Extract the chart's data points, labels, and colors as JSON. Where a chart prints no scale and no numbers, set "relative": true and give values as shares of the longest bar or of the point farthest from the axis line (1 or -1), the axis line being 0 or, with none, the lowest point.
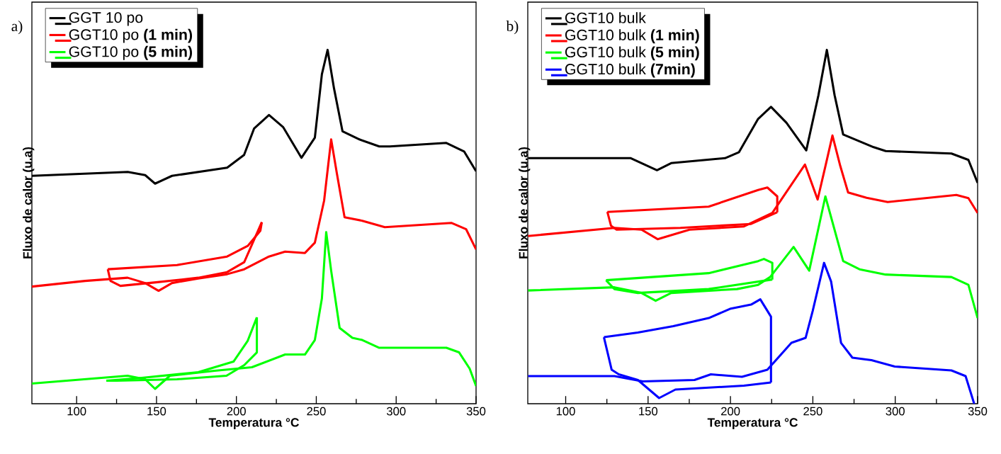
{
  "chart_data": [
    {
      "type": "line",
      "title": "a)",
      "xlabel": "Temperatura °C",
      "ylabel": "Fluxo de calor (u.a)",
      "relative": true,
      "xlim": [
        72,
        350
      ],
      "xticks": [
        100,
        150,
        200,
        250,
        300,
        350
      ],
      "tick_labels": "x",
      "legend": "top left",
      "line_style": "solid",
      "series": [
        {
          "name": "GGT 10 po",
          "color": "#000000",
          "x": [
            72,
            132,
            142.9,
            149.1,
            159.7,
            194.2,
            204.8,
            211.1,
            220.4,
            229.2,
            240.7,
            249.1,
            253.5,
            257.1,
            261.1,
            266.4,
            277,
            289.4,
            296,
            331.4,
            342.5,
            350
          ],
          "values": [
            0.644,
            0.655,
            0.646,
            0.622,
            0.644,
            0.667,
            0.703,
            0.778,
            0.816,
            0.782,
            0.695,
            0.752,
            0.931,
            1,
            0.891,
            0.77,
            0.747,
            0.727,
            0.727,
            0.737,
            0.713,
            0.657
          ]
        },
        {
          "name": "GGT10 po **(1 min)**",
          "color": "#ff0000",
          "x": [
            72,
            105.3,
            131.9,
            142.9,
            151.3,
            159.7,
            176.1,
            194.2,
            204.9,
            220.4,
            230.5,
            242.9,
            249.1,
            254.9,
            259.3,
            262.8,
            267.7,
            278.8,
            292.9,
            334.5,
            343.8,
            350
          ],
          "values": [
            0.331,
            0.347,
            0.356,
            0.341,
            0.319,
            0.341,
            0.354,
            0.366,
            0.38,
            0.416,
            0.43,
            0.426,
            0.455,
            0.574,
            0.747,
            0.653,
            0.527,
            0.517,
            0.499,
            0.511,
            0.493,
            0.436
          ]
        },
        {
          "color": "#ff0000",
          "x": [
            119.5,
            121.2,
            127.4,
            149.6,
            176.1,
            194.2,
            204.9,
            215.9
          ],
          "values": [
            0.38,
            0.347,
            0.333,
            0.343,
            0.356,
            0.372,
            0.4,
            0.513
          ]
        },
        {
          "color": "#ff0000",
          "x": [
            119.5,
            162.8,
            194.2,
            207.1,
            215,
            215.9
          ],
          "values": [
            0.38,
            0.392,
            0.416,
            0.446,
            0.489,
            0.513
          ]
        },
        {
          "name": "GGT10 po **(5 min)**",
          "color": "#00ff00",
          "x": [
            72,
            131.9,
            142.9,
            149.1,
            158.4,
            186.3,
            209.7,
            230.5,
            242.9,
            249.1,
            253.5,
            256.2,
            259.3,
            264.6,
            272.6,
            278.8,
            289.4,
            331.4,
            339.4,
            346,
            350
          ],
          "values": [
            0.057,
            0.079,
            0.069,
            0.042,
            0.079,
            0.093,
            0.103,
            0.139,
            0.139,
            0.18,
            0.297,
            0.485,
            0.376,
            0.214,
            0.186,
            0.18,
            0.158,
            0.158,
            0.145,
            0.099,
            0.05
          ]
        },
        {
          "color": "#00ff00",
          "x": [
            118.6,
            125.2,
            162.8,
            193.8,
            204.9,
            212.8,
            212.8
          ],
          "values": [
            0.065,
            0.065,
            0.069,
            0.079,
            0.109,
            0.145,
            0.244
          ]
        },
        {
          "color": "#00ff00",
          "x": [
            118.6,
            140.7,
            176.1,
            198.2,
            207.1,
            212.8
          ],
          "values": [
            0.065,
            0.073,
            0.089,
            0.119,
            0.178,
            0.244
          ]
        }
      ]
    },
    {
      "type": "line",
      "title": "b)",
      "xlabel": "Temperatura °C",
      "ylabel": "Fluxo de calor (u.a)",
      "relative": true,
      "xlim": [
        77,
        350
      ],
      "xticks": [
        100,
        150,
        200,
        250,
        300,
        350
      ],
      "tick_labels": "x",
      "legend": "top left",
      "line_style": "solid",
      "series": [
        {
          "name": "GGT10 bulk",
          "color": "#000000",
          "x": [
            77.2,
            139.5,
            155.4,
            164,
            196.7,
            205.2,
            216.8,
            224.6,
            234,
            246,
            253.4,
            258.5,
            263.2,
            268.4,
            286.9,
            294.2,
            334.1,
            344.4,
            350
          ],
          "values": [
            0.694,
            0.694,
            0.66,
            0.68,
            0.694,
            0.711,
            0.805,
            0.839,
            0.794,
            0.716,
            0.872,
            1,
            0.872,
            0.761,
            0.725,
            0.714,
            0.707,
            0.689,
            0.624
          ]
        },
        {
          "name": "GGT10 bulk **(1 min)**",
          "color": "#ff0000",
          "x": [
            77.2,
            129.6,
            146,
            155.8,
            175.2,
            208.2,
            225.4,
            245.2,
            252.9,
            257.6,
            261.9,
            266.7,
            271.4,
            282.6,
            295.4,
            337.1,
            344.4,
            350
          ],
          "values": [
            0.474,
            0.497,
            0.492,
            0.465,
            0.492,
            0.501,
            0.539,
            0.676,
            0.577,
            0.671,
            0.758,
            0.671,
            0.597,
            0.582,
            0.57,
            0.59,
            0.581,
            0.539
          ]
        },
        {
          "color": "#ff0000",
          "x": [
            125.3,
            186.8,
            216.8,
            222.4,
            228.4,
            228.4
          ],
          "values": [
            0.542,
            0.557,
            0.604,
            0.611,
            0.586,
            0.541
          ]
        },
        {
          "color": "#ff0000",
          "x": [
            125.3,
            127.5,
            130.9,
            169.6,
            212.5,
            228.4
          ],
          "values": [
            0.542,
            0.503,
            0.492,
            0.497,
            0.508,
            0.541
          ]
        },
        {
          "name": "GGT10 bulk **(5 min)**",
          "color": "#00ff00",
          "x": [
            77.2,
            129.6,
            146,
            154.6,
            164,
            204,
            216.8,
            224.1,
            238.3,
            247.8,
            257.6,
            268.4,
            278.3,
            294.2,
            334.1,
            344.4,
            350
          ],
          "values": [
            0.32,
            0.329,
            0.313,
            0.291,
            0.313,
            0.324,
            0.336,
            0.358,
            0.443,
            0.376,
            0.586,
            0.403,
            0.38,
            0.365,
            0.358,
            0.336,
            0.242
          ]
        },
        {
          "color": "#00ff00",
          "x": [
            124.5,
            186.8,
            216.8,
            220.3,
            225.4,
            225.4
          ],
          "values": [
            0.349,
            0.369,
            0.403,
            0.409,
            0.398,
            0.351
          ]
        },
        {
          "color": "#00ff00",
          "x": [
            124.5,
            129.6,
            143.8,
            186.8,
            225.4
          ],
          "values": [
            0.349,
            0.324,
            0.313,
            0.324,
            0.351
          ]
        },
        {
          "name": "GGT10 bulk **(7min)**",
          "color": "#0000ff",
          "x": [
            77.2,
            129.6,
            146.8,
            178.2,
            188.1,
            207,
            222.4,
            237,
            245.6,
            249.9,
            256.8,
            261.1,
            267.1,
            274,
            285.6,
            299.7,
            334.1,
            342.7,
            347.9
          ],
          "values": [
            0.078,
            0.078,
            0.063,
            0.067,
            0.083,
            0.076,
            0.096,
            0.172,
            0.186,
            0.262,
            0.398,
            0.345,
            0.172,
            0.13,
            0.123,
            0.105,
            0.094,
            0.078,
            0
          ]
        },
        {
          "color": "#0000ff",
          "x": [
            123.2,
            143.8,
            165.3,
            186.8,
            199.7,
            212.5,
            218.1,
            224.6,
            224.6
          ],
          "values": [
            0.188,
            0.201,
            0.219,
            0.242,
            0.268,
            0.28,
            0.295,
            0.246,
            0.06
          ]
        },
        {
          "color": "#0000ff",
          "x": [
            123.2,
            127.9,
            132.2,
            143.8,
            156.7,
            166.6,
            208.2,
            224.6
          ],
          "values": [
            0.188,
            0.096,
            0.083,
            0.067,
            0.016,
            0.04,
            0.051,
            0.06
          ]
        }
      ]
    }
  ]
}
